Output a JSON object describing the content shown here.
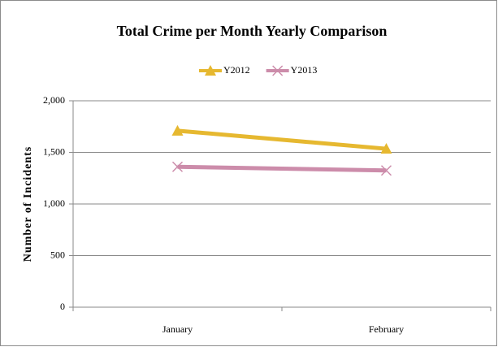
{
  "chart_data": {
    "type": "line",
    "title": "Total Crime per Month Yearly Comparison",
    "y_label": "Number of Incidents",
    "categories": [
      "January",
      "February"
    ],
    "series": [
      {
        "name": "Y2012",
        "color": "#e6b830",
        "marker": "triangle",
        "values": [
          1710,
          1535
        ]
      },
      {
        "name": "Y2013",
        "color": "#cc8caa",
        "marker": "x",
        "values": [
          1360,
          1325
        ]
      }
    ],
    "ylim": [
      0,
      2000
    ],
    "yticks": [
      0,
      500,
      {
        "value": 1000,
        "label": "1,000"
      },
      {
        "value": 1500,
        "label": "1,500"
      },
      {
        "value": 2000,
        "label": "2,000"
      }
    ],
    "grid": true,
    "legend": "top"
  }
}
